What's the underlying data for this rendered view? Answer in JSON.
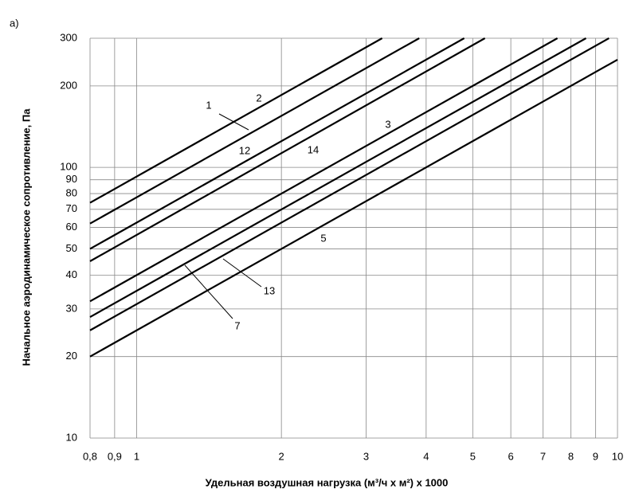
{
  "chart_data": {
    "type": "line",
    "panel_label": "а)",
    "x_label": "Удельная воздушная нагрузка (м³/ч х м²) х 1000",
    "y_label": "Начальное аэродинамическое сопротивление,  Па",
    "xscale": "log",
    "yscale": "log",
    "grid": true,
    "xlim": [
      0.8,
      10
    ],
    "ylim": [
      10,
      300
    ],
    "xticks": [
      {
        "value": 0.8,
        "label": "0,8"
      },
      {
        "value": 0.9,
        "label": "0,9"
      },
      1,
      2,
      3,
      4,
      5,
      6,
      7,
      8,
      9,
      10
    ],
    "yticks": [
      10,
      20,
      30,
      40,
      50,
      60,
      70,
      80,
      90,
      100,
      200,
      300
    ],
    "series": [
      {
        "name": "2",
        "color": "#000000",
        "x": [
          0.8,
          3.24
        ],
        "values": [
          74,
          300
        ]
      },
      {
        "name": "1",
        "color": "#000000",
        "x": [
          0.8,
          3.87
        ],
        "values": [
          62,
          300
        ]
      },
      {
        "name": "12",
        "color": "#000000",
        "x": [
          0.8,
          4.8
        ],
        "values": [
          50,
          300
        ]
      },
      {
        "name": "14",
        "color": "#000000",
        "x": [
          0.8,
          5.3
        ],
        "values": [
          45,
          300
        ]
      },
      {
        "name": "3",
        "color": "#000000",
        "x": [
          0.8,
          7.5
        ],
        "values": [
          32,
          300
        ]
      },
      {
        "name": "7",
        "color": "#000000",
        "x": [
          0.8,
          8.6
        ],
        "values": [
          28,
          300
        ]
      },
      {
        "name": "13",
        "color": "#000000",
        "x": [
          0.8,
          9.6
        ],
        "values": [
          25,
          300
        ]
      },
      {
        "name": "5",
        "color": "#000000",
        "x": [
          0.8,
          10
        ],
        "values": [
          20,
          250
        ]
      }
    ]
  }
}
